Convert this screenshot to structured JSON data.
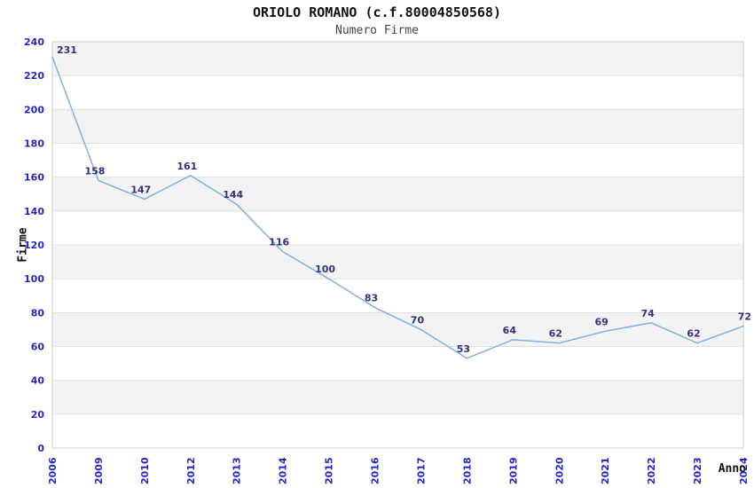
{
  "chart_data": {
    "type": "line",
    "title": "ORIOLO ROMANO (c.f.80004850568)",
    "subtitle": "Numero Firme",
    "xlabel": "Anno",
    "ylabel": "Firme",
    "categories": [
      "2006",
      "2009",
      "2010",
      "2012",
      "2013",
      "2014",
      "2015",
      "2016",
      "2017",
      "2018",
      "2019",
      "2020",
      "2021",
      "2022",
      "2023",
      "2024"
    ],
    "values": [
      231,
      158,
      147,
      161,
      144,
      116,
      100,
      83,
      70,
      53,
      64,
      62,
      69,
      74,
      62,
      72
    ],
    "ylim": [
      0,
      240
    ],
    "ytick_step": 20,
    "grid": "horizontal-bands-alternating",
    "legend": "none",
    "data_labels_shown": true,
    "colors": {
      "line": "#7fb0e0",
      "data_label": "#31317e",
      "tick_label": "#2424cc",
      "band": "#f3f3f3",
      "band_alt": "#ffffff",
      "gridline": "#e0e0e0",
      "plot_border": "#cccccc",
      "title": "#111111",
      "subtitle": "#444444",
      "axis_title": "#111111",
      "background": "#ffffff"
    }
  }
}
